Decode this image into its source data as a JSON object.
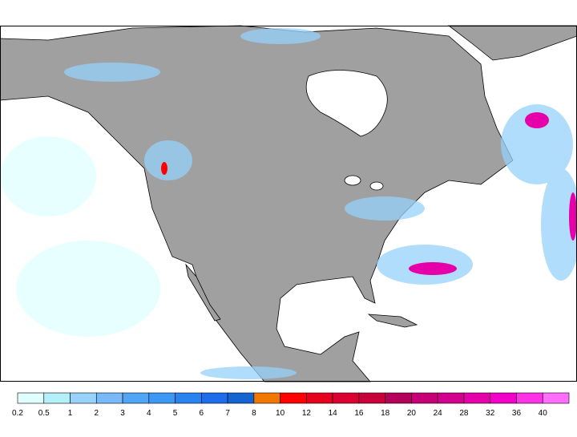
{
  "legend": {
    "values": [
      0.2,
      0.5,
      1,
      2,
      3,
      4,
      5,
      6,
      7,
      8,
      10,
      12,
      14,
      16,
      18,
      20,
      24,
      28,
      32,
      36,
      40
    ],
    "colors": [
      "#e0ffff",
      "#b4f0fa",
      "#96d2fa",
      "#78b9fa",
      "#50a5f5",
      "#3c97f5",
      "#2883f0",
      "#1e6eeb",
      "#1464d2",
      "#f07800",
      "#ff0000",
      "#e6001e",
      "#dc0032",
      "#c8003c",
      "#b4005a",
      "#c80078",
      "#d2008c",
      "#e600aa",
      "#f000c8",
      "#ff32e6",
      "#ff6eff"
    ]
  }
}
